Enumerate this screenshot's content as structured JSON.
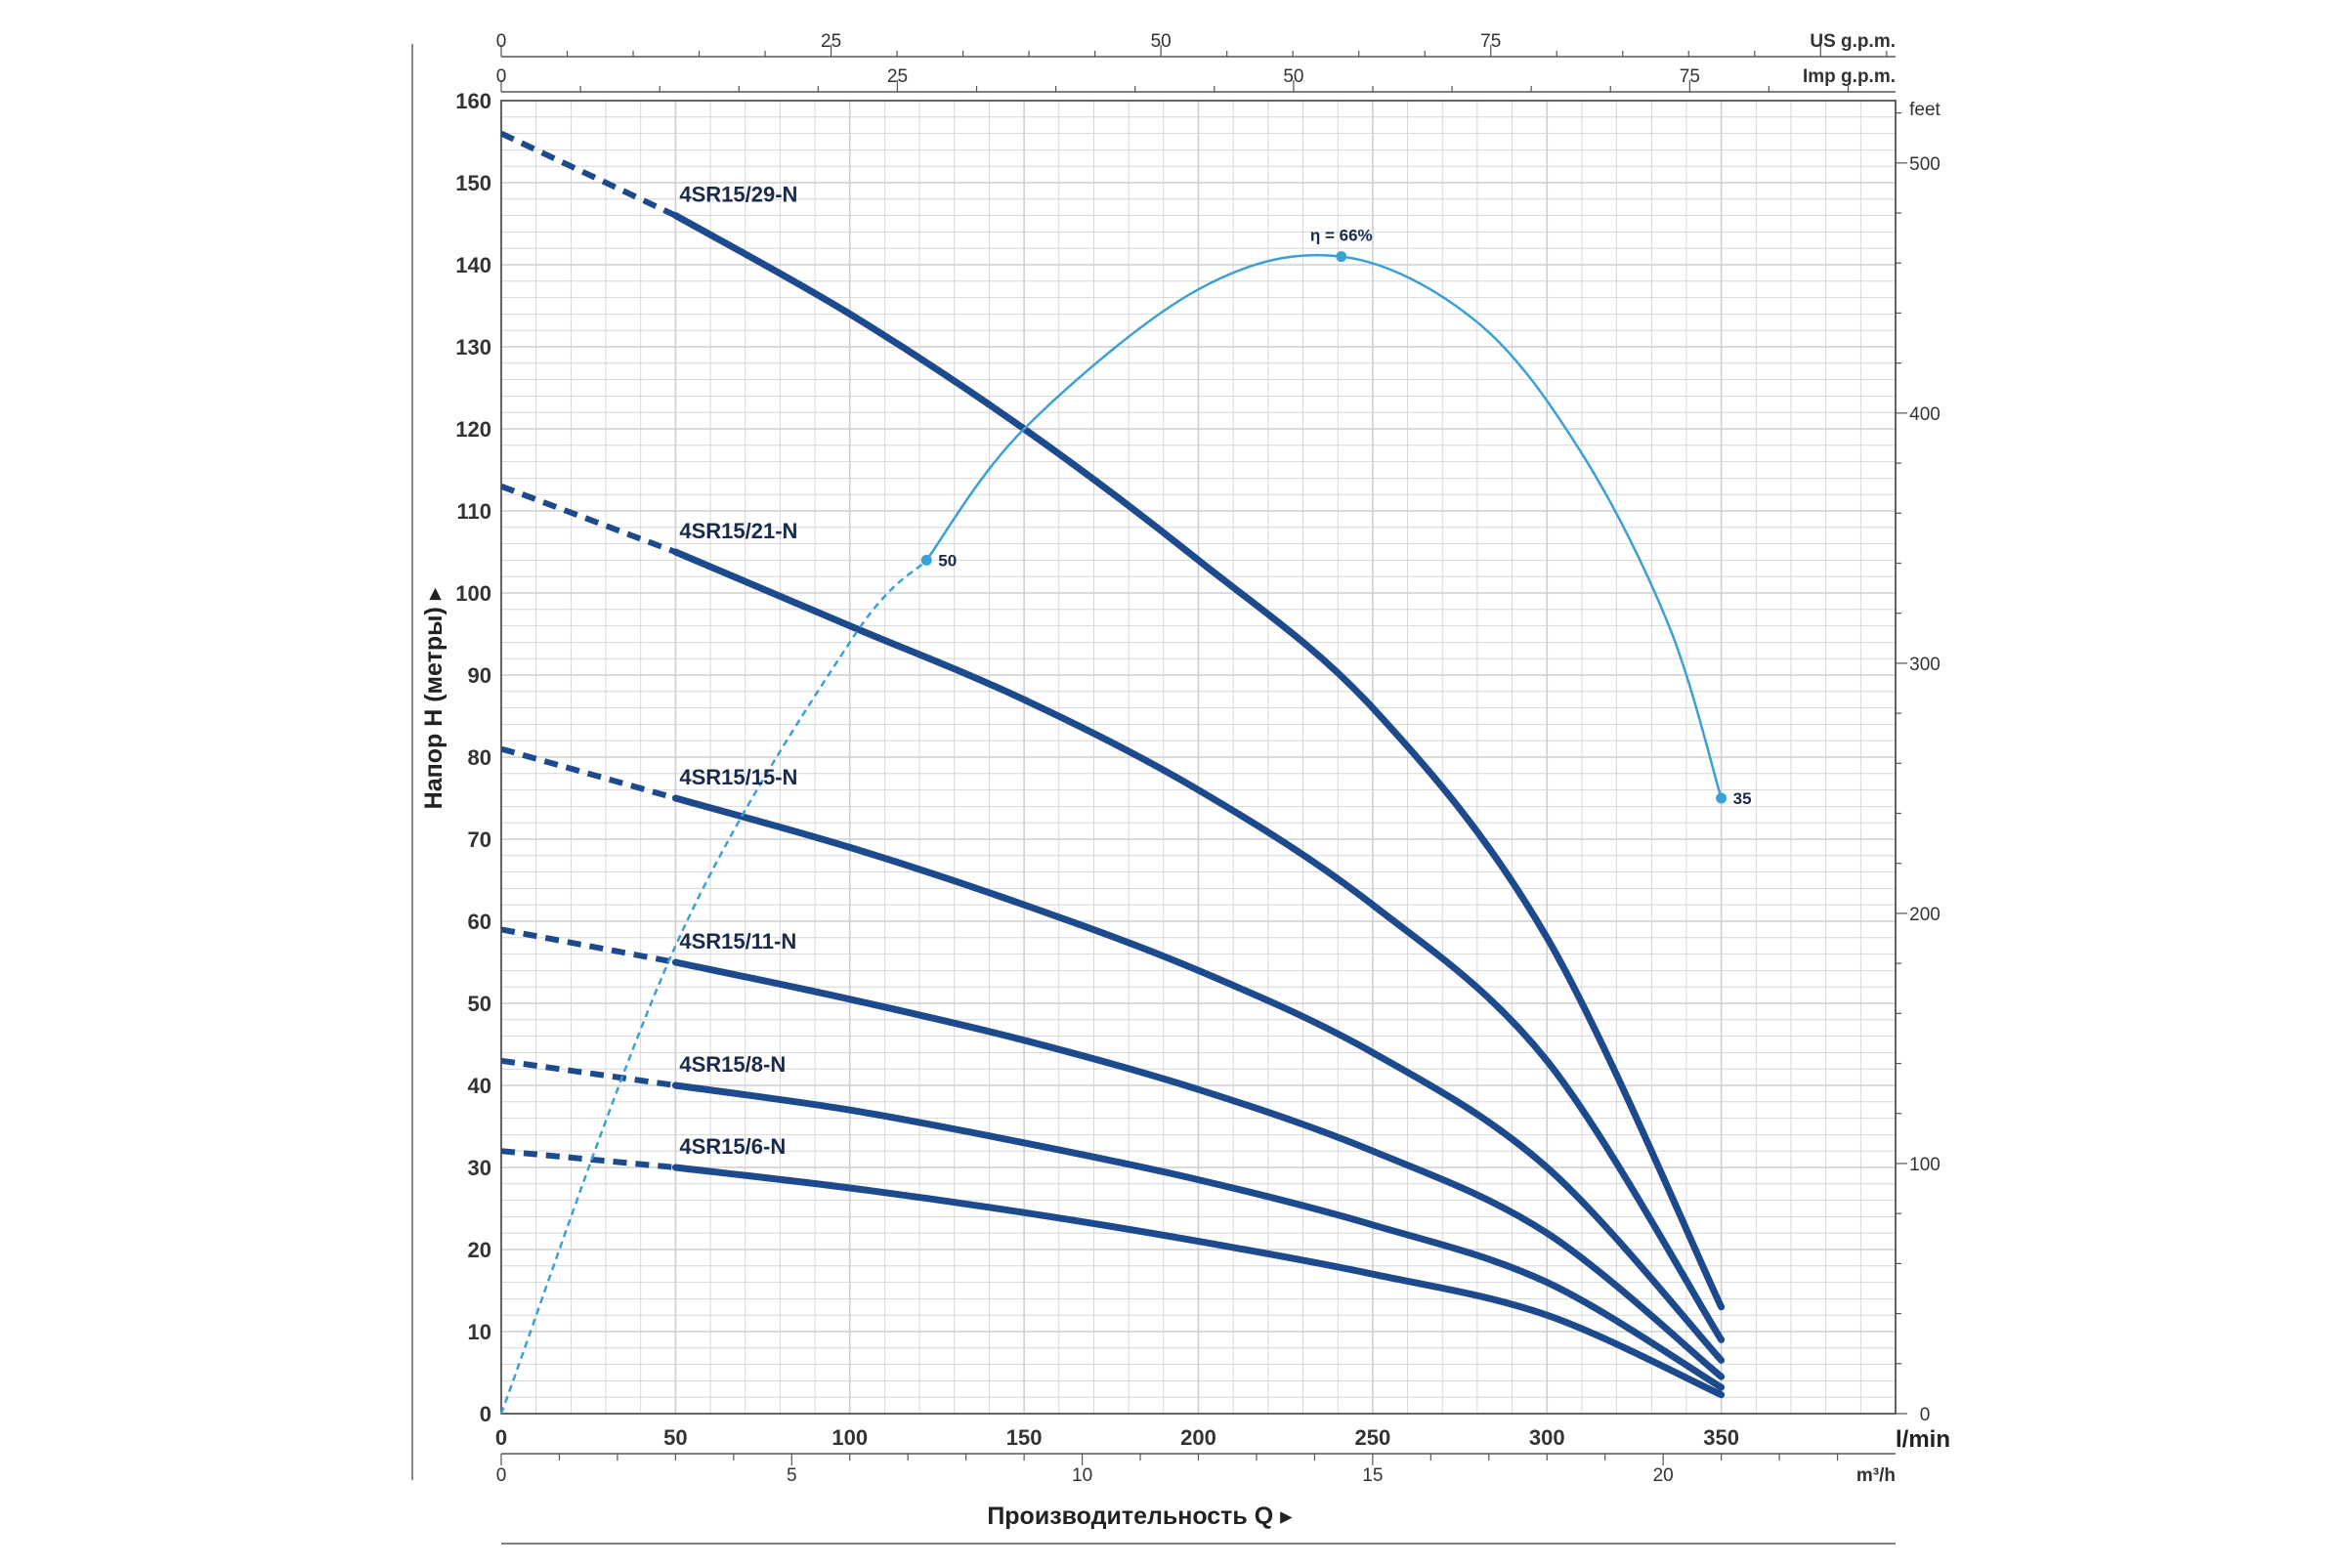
{
  "chart_data": {
    "type": "line",
    "x_unit": "l/min",
    "xlim": [
      0,
      400
    ],
    "x_ticks": [
      "0",
      "50",
      "100",
      "150",
      "200",
      "250",
      "300",
      "350"
    ],
    "ylim": [
      0,
      160
    ],
    "y_ticks": [
      "0",
      "10",
      "20",
      "30",
      "40",
      "50",
      "60",
      "70",
      "80",
      "90",
      "100",
      "110",
      "120",
      "130",
      "140",
      "150",
      "160"
    ],
    "ylabel": "Напор Н (метры)",
    "xlabel": "Производительность Q",
    "secondary_axes": {
      "top_us": {
        "unit": "US g.p.m.",
        "ticks": [
          0,
          25,
          50,
          75
        ]
      },
      "top_imp": {
        "unit": "Imp g.p.m.",
        "ticks": [
          0,
          25,
          50,
          75
        ]
      },
      "bottom_m3h": {
        "unit": "m³/h",
        "ticks": [
          0,
          5,
          10,
          15,
          20
        ]
      },
      "right_feet": {
        "unit": "feet",
        "ticks": [
          0,
          100,
          200,
          300,
          400,
          500
        ]
      }
    },
    "series": [
      {
        "name": "4SR15/29-N",
        "x": [
          0,
          50,
          100,
          150,
          200,
          250,
          300,
          350
        ],
        "y": [
          156,
          146,
          134,
          120,
          104,
          86,
          58,
          13
        ]
      },
      {
        "name": "4SR15/21-N",
        "x": [
          0,
          50,
          100,
          150,
          200,
          250,
          300,
          350
        ],
        "y": [
          113,
          105,
          96,
          87,
          76,
          62,
          43,
          9
        ]
      },
      {
        "name": "4SR15/15-N",
        "x": [
          0,
          50,
          100,
          150,
          200,
          250,
          300,
          350
        ],
        "y": [
          81,
          75,
          69,
          62,
          54,
          44,
          30,
          6.5
        ]
      },
      {
        "name": "4SR15/11-N",
        "x": [
          0,
          50,
          100,
          150,
          200,
          250,
          300,
          350
        ],
        "y": [
          59,
          55,
          50.5,
          45.5,
          39.5,
          32,
          22,
          4.5
        ]
      },
      {
        "name": "4SR15/8-N",
        "x": [
          0,
          50,
          100,
          150,
          200,
          250,
          300,
          350
        ],
        "y": [
          43,
          40,
          37,
          33,
          28.5,
          23,
          16,
          3.2
        ]
      },
      {
        "name": "4SR15/6-N",
        "x": [
          0,
          50,
          100,
          150,
          200,
          250,
          300,
          350
        ],
        "y": [
          32,
          30,
          27.5,
          24.5,
          21,
          17,
          12,
          2.3
        ]
      }
    ],
    "efficiency_curve": {
      "x": [
        0,
        50,
        100,
        122,
        150,
        200,
        241,
        280,
        310,
        335,
        350
      ],
      "y": [
        0,
        57,
        94,
        104,
        120,
        137,
        141,
        133,
        117,
        96,
        75
      ],
      "labels": [
        {
          "x": 122,
          "y": 104,
          "text": "50"
        },
        {
          "x": 241,
          "y": 141,
          "text": "η = 66%"
        },
        {
          "x": 350,
          "y": 75,
          "text": "35"
        }
      ]
    },
    "colors": {
      "pump_curve": "#1c4a8c",
      "efficiency_curve": "#3aa0d6",
      "grid": "#cfcfcf"
    },
    "grid": true
  }
}
